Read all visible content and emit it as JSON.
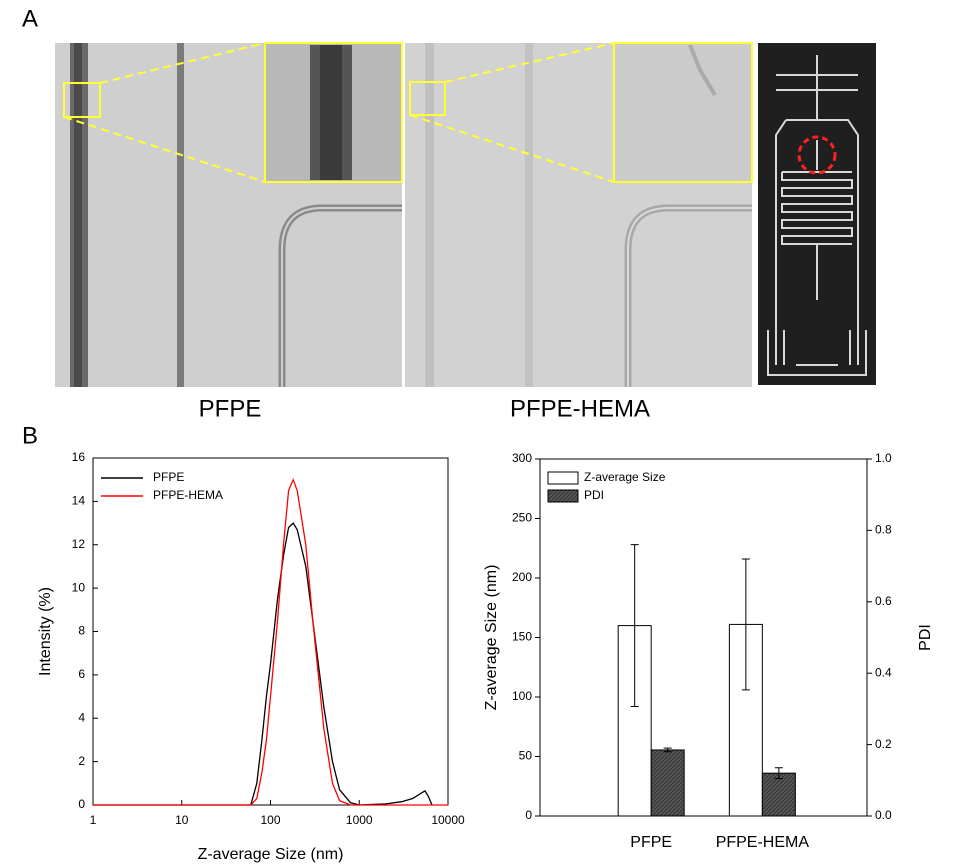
{
  "panel_labels": [
    "A",
    "B"
  ],
  "image_captions": [
    "PFPE",
    "PFPE-HEMA"
  ],
  "chart_data": [
    {
      "type": "line",
      "xlabel": "Z-average Size (nm)",
      "ylabel": "Intensity (%)",
      "log_x": true,
      "legend": "upper left",
      "x": [
        1,
        60,
        70,
        80,
        90,
        100,
        120,
        140,
        160,
        180,
        200,
        250,
        300,
        400,
        500,
        600,
        800,
        1000,
        2000,
        3000,
        4000,
        5000,
        5500,
        6000,
        6600,
        10000
      ],
      "series": [
        {
          "name": "PFPE",
          "color": "#000000",
          "values": [
            0,
            0,
            1,
            3,
            5,
            6.5,
            9.5,
            11.5,
            12.8,
            13,
            12.7,
            11,
            8.5,
            4.5,
            2,
            0.7,
            0.1,
            0,
            0.05,
            0.15,
            0.3,
            0.55,
            0.65,
            0.4,
            0,
            null
          ]
        },
        {
          "name": "PFPE-HEMA",
          "color": "#ff0000",
          "values": [
            0,
            0,
            0.3,
            1.5,
            3,
            5,
            8.5,
            12,
            14.5,
            15,
            14.5,
            12,
            8.5,
            3.5,
            1,
            0.2,
            0,
            0,
            0,
            0,
            0,
            0,
            0,
            0,
            0,
            0
          ]
        }
      ],
      "xlim": [
        1,
        10000
      ],
      "xticks": [
        1,
        10,
        100,
        1000,
        10000
      ],
      "ylim": [
        0,
        16
      ],
      "yticks": [
        0,
        2,
        4,
        6,
        8,
        10,
        12,
        14,
        16
      ]
    },
    {
      "type": "bar",
      "ylabel": "Z-average Size (nm)",
      "y2label": "PDI",
      "legend": "upper left",
      "categories": [
        "PFPE",
        "PFPE-HEMA"
      ],
      "series": [
        {
          "name": "Z-average Size",
          "color": "#ffffff",
          "values": [
            160,
            161
          ],
          "errors": [
            68,
            55
          ]
        },
        {
          "name": "PDI",
          "color": "#555555",
          "values": [
            0.185,
            0.12
          ],
          "errors": [
            0.005,
            0.015
          ],
          "axis": "y2"
        }
      ],
      "ylim": [
        0,
        300
      ],
      "yticks": [
        0,
        50,
        100,
        150,
        200,
        250,
        300
      ],
      "y2lim": [
        0,
        1
      ],
      "y2ticks": [
        {
          "value": 0,
          "label": "0.0"
        },
        0.2,
        0.4,
        0.6,
        0.8,
        {
          "value": 1,
          "label": "1.0"
        }
      ]
    }
  ]
}
